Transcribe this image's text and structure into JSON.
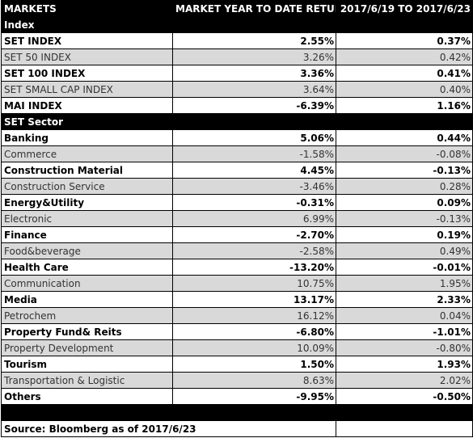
{
  "header": {
    "col1": "MARKETS",
    "col2": "MARKET YEAR TO DATE RETURN",
    "col3": "2017/6/19 TO 2017/6/23"
  },
  "sections": [
    {
      "title": "Index",
      "rows": [
        {
          "name": "SET INDEX",
          "ytd": "2.55%",
          "week": "0.37%",
          "bold": true
        },
        {
          "name": "SET 50 INDEX",
          "ytd": "3.26%",
          "week": "0.42%",
          "bold": false
        },
        {
          "name": "SET 100 INDEX",
          "ytd": "3.36%",
          "week": "0.41%",
          "bold": true
        },
        {
          "name": "SET SMALL CAP INDEX",
          "ytd": "3.64%",
          "week": "0.40%",
          "bold": false
        },
        {
          "name": "MAI INDEX",
          "ytd": "-6.39%",
          "week": "1.16%",
          "bold": true
        }
      ]
    },
    {
      "title": "SET Sector",
      "rows": [
        {
          "name": "Banking",
          "ytd": "5.06%",
          "week": "0.44%",
          "bold": true
        },
        {
          "name": "Commerce",
          "ytd": "-1.58%",
          "week": "-0.08%",
          "bold": false
        },
        {
          "name": "Construction Material",
          "ytd": "4.45%",
          "week": "-0.13%",
          "bold": true
        },
        {
          "name": "Construction Service",
          "ytd": "-3.46%",
          "week": "0.28%",
          "bold": false
        },
        {
          "name": "Energy&Utility",
          "ytd": "-0.31%",
          "week": "0.09%",
          "bold": true
        },
        {
          "name": "Electronic",
          "ytd": "6.99%",
          "week": "-0.13%",
          "bold": false
        },
        {
          "name": "Finance",
          "ytd": "-2.70%",
          "week": "0.19%",
          "bold": true
        },
        {
          "name": "Food&beverage",
          "ytd": "-2.58%",
          "week": "0.49%",
          "bold": false
        },
        {
          "name": "Health Care",
          "ytd": "-13.20%",
          "week": "-0.01%",
          "bold": true
        },
        {
          "name": "Communication",
          "ytd": "10.75%",
          "week": "1.95%",
          "bold": false
        },
        {
          "name": "Media",
          "ytd": "13.17%",
          "week": "2.33%",
          "bold": true
        },
        {
          "name": "Petrochem",
          "ytd": "16.12%",
          "week": "0.04%",
          "bold": false
        },
        {
          "name": "Property Fund& Reits",
          "ytd": "-6.80%",
          "week": "-1.01%",
          "bold": true
        },
        {
          "name": "Property Development",
          "ytd": "10.09%",
          "week": "-0.80%",
          "bold": false
        },
        {
          "name": "Tourism",
          "ytd": "1.50%",
          "week": "1.93%",
          "bold": true
        },
        {
          "name": "Transportation & Logistic",
          "ytd": "8.63%",
          "week": "2.02%",
          "bold": false
        },
        {
          "name": "Others",
          "ytd": "-9.95%",
          "week": "-0.50%",
          "bold": true
        }
      ]
    }
  ],
  "footer": {
    "source": "Source: Bloomberg as of 2017/6/23"
  },
  "colors": {
    "header_bg": "#000000",
    "header_text": "#ffffff",
    "shaded_row": "#d9d9d9",
    "border": "#000000"
  }
}
